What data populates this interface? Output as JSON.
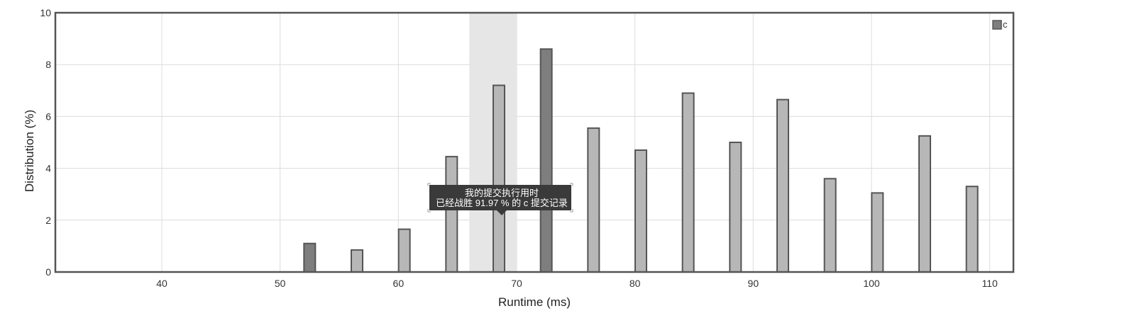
{
  "colors": {
    "bar_fill": "#b7b7b7",
    "bar_fill_dark": "#7e7e7e",
    "bar_stroke": "#555555",
    "frame": "#555555",
    "grid": "#dcdcdc",
    "highlight_band": "#e6e6e6",
    "tooltip_bg": "#3a3a3a"
  },
  "legend": {
    "label": "c",
    "position": "top-right"
  },
  "tooltip": {
    "line1": "我的提交执行用时",
    "line2": "已经战胜 91.97 % 的 c 提交记录"
  },
  "chart_data": {
    "type": "bar",
    "xlabel": "Runtime (ms)",
    "ylabel": "Distribution (%)",
    "xlim": [
      31,
      112
    ],
    "ylim": [
      0,
      10
    ],
    "x_ticks": [
      40,
      50,
      60,
      70,
      80,
      90,
      100,
      110
    ],
    "y_ticks": [
      0,
      2,
      4,
      6,
      8,
      10
    ],
    "grid": true,
    "highlight_range": [
      66,
      70
    ],
    "series": [
      {
        "name": "c",
        "points": [
          {
            "x": 52.5,
            "y": 1.1,
            "dark": true
          },
          {
            "x": 56.5,
            "y": 0.85,
            "dark": false
          },
          {
            "x": 60.5,
            "y": 1.65,
            "dark": false
          },
          {
            "x": 64.5,
            "y": 4.45,
            "dark": false
          },
          {
            "x": 68.5,
            "y": 7.2,
            "dark": false
          },
          {
            "x": 72.5,
            "y": 8.6,
            "dark": true
          },
          {
            "x": 76.5,
            "y": 5.55,
            "dark": false
          },
          {
            "x": 80.5,
            "y": 4.7,
            "dark": false
          },
          {
            "x": 84.5,
            "y": 6.9,
            "dark": false
          },
          {
            "x": 88.5,
            "y": 5.0,
            "dark": false
          },
          {
            "x": 92.5,
            "y": 6.65,
            "dark": false
          },
          {
            "x": 96.5,
            "y": 3.6,
            "dark": false
          },
          {
            "x": 100.5,
            "y": 3.05,
            "dark": false
          },
          {
            "x": 104.5,
            "y": 5.25,
            "dark": false
          },
          {
            "x": 108.5,
            "y": 3.3,
            "dark": false
          }
        ]
      }
    ]
  }
}
